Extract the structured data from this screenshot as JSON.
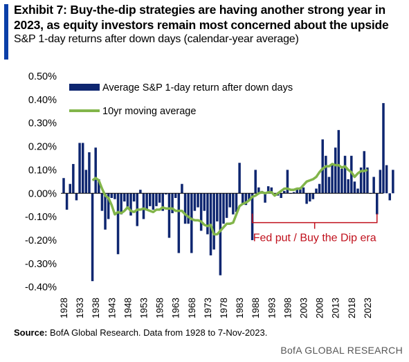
{
  "header": {
    "title_line1": "Exhibit 7: Buy-the-dip strategies are having another strong  year in",
    "title_line2": "2023, as equity investors remain most concerned about the upside",
    "subtitle": "S&P 1-day returns after down days  (calendar-year  average)"
  },
  "colors": {
    "accent": "#0b3fa8",
    "bar": "#0e2670",
    "line": "#82b54a",
    "annotation": "#c0101c"
  },
  "chart_data": {
    "type": "bar",
    "ylim": [
      -0.4,
      0.5
    ],
    "y_ticks": [
      "0.50%",
      "0.40%",
      "0.30%",
      "0.20%",
      "0.10%",
      "0.00%",
      "-0.10%",
      "-0.20%",
      "-0.30%",
      "-0.40%"
    ],
    "y_tick_values": [
      0.5,
      0.4,
      0.3,
      0.2,
      0.1,
      0.0,
      -0.1,
      -0.2,
      -0.3,
      -0.4
    ],
    "x_ticks": [
      "1928",
      "1933",
      "1938",
      "1943",
      "1948",
      "1953",
      "1958",
      "1963",
      "1968",
      "1973",
      "1978",
      "1983",
      "1988",
      "1993",
      "1998",
      "2003",
      "2008",
      "2013",
      "2018",
      "2023"
    ],
    "x_start": 1928,
    "series": [
      {
        "name": "Average S&P 1-day return after down days",
        "kind": "bar",
        "values": [
          0.065,
          -0.07,
          0.04,
          0.125,
          -0.03,
          0.215,
          0.215,
          0.1,
          0.175,
          -0.375,
          0.195,
          0.06,
          -0.075,
          -0.155,
          -0.11,
          -0.02,
          -0.025,
          -0.26,
          -0.09,
          -0.035,
          -0.06,
          -0.095,
          -0.035,
          -0.14,
          0.015,
          -0.11,
          -0.07,
          -0.055,
          -0.07,
          -0.055,
          -0.04,
          -0.075,
          -0.005,
          -0.19,
          -0.085,
          -0.02,
          -0.255,
          0.04,
          -0.13,
          -0.13,
          -0.255,
          -0.075,
          -0.06,
          -0.16,
          -0.075,
          -0.175,
          -0.265,
          -0.24,
          -0.12,
          -0.35,
          -0.13,
          -0.105,
          -0.06,
          -0.09,
          -0.08,
          0.13,
          -0.045,
          -0.05,
          -0.03,
          -0.2,
          0.1,
          0.025,
          0.01,
          -0.04,
          0.03,
          0.025,
          0.0,
          -0.01,
          -0.02,
          0.01,
          0.1,
          0.0,
          0.005,
          0.015,
          0.025,
          0.025,
          -0.045,
          -0.035,
          -0.025,
          0.02,
          0.04,
          0.23,
          0.16,
          0.07,
          0.12,
          0.195,
          0.27,
          0.105,
          0.16,
          0.06,
          0.16,
          0.05,
          0.02,
          0.11,
          0.18,
          0.11,
          0.0,
          0.07,
          -0.09,
          0.1,
          0.385,
          0.12,
          -0.03,
          0.1
        ]
      },
      {
        "name": "10yr moving average",
        "kind": "line",
        "start_year": 1937,
        "values": [
          0.055,
          0.065,
          0.055,
          0.02,
          -0.01,
          -0.02,
          -0.05,
          -0.09,
          -0.08,
          -0.085,
          -0.075,
          -0.06,
          -0.075,
          -0.08,
          -0.07,
          -0.07,
          -0.065,
          -0.07,
          -0.075,
          -0.08,
          -0.07,
          -0.07,
          -0.06,
          -0.065,
          -0.065,
          -0.065,
          -0.075,
          -0.075,
          -0.075,
          -0.09,
          -0.1,
          -0.11,
          -0.115,
          -0.115,
          -0.12,
          -0.135,
          -0.14,
          -0.135,
          -0.175,
          -0.175,
          -0.16,
          -0.145,
          -0.13,
          -0.13,
          -0.125,
          -0.09,
          -0.055,
          -0.045,
          -0.04,
          -0.03,
          -0.015,
          -0.01,
          0.0,
          0.005,
          0.0,
          0.005,
          0.005,
          -0.01,
          0.0,
          0.01,
          0.02,
          0.02,
          0.015,
          0.015,
          0.02,
          0.02,
          0.035,
          0.05,
          0.055,
          0.06,
          0.07,
          0.09,
          0.105,
          0.115,
          0.115,
          0.125,
          0.12,
          0.12,
          0.11,
          0.115,
          0.1,
          0.09,
          0.07,
          0.085,
          0.095,
          0.095,
          0.1
        ]
      }
    ],
    "annotation": {
      "text": "Fed put / Buy the Dip era",
      "start_year": 1987,
      "end_year": 2026,
      "y": -0.125
    }
  },
  "footer": {
    "source_label": "Source:",
    "source_text": " BofA Global Research. Data from 1928 to 7-Nov-2023.",
    "brand": "BofA GLOBAL RESEARCH"
  }
}
